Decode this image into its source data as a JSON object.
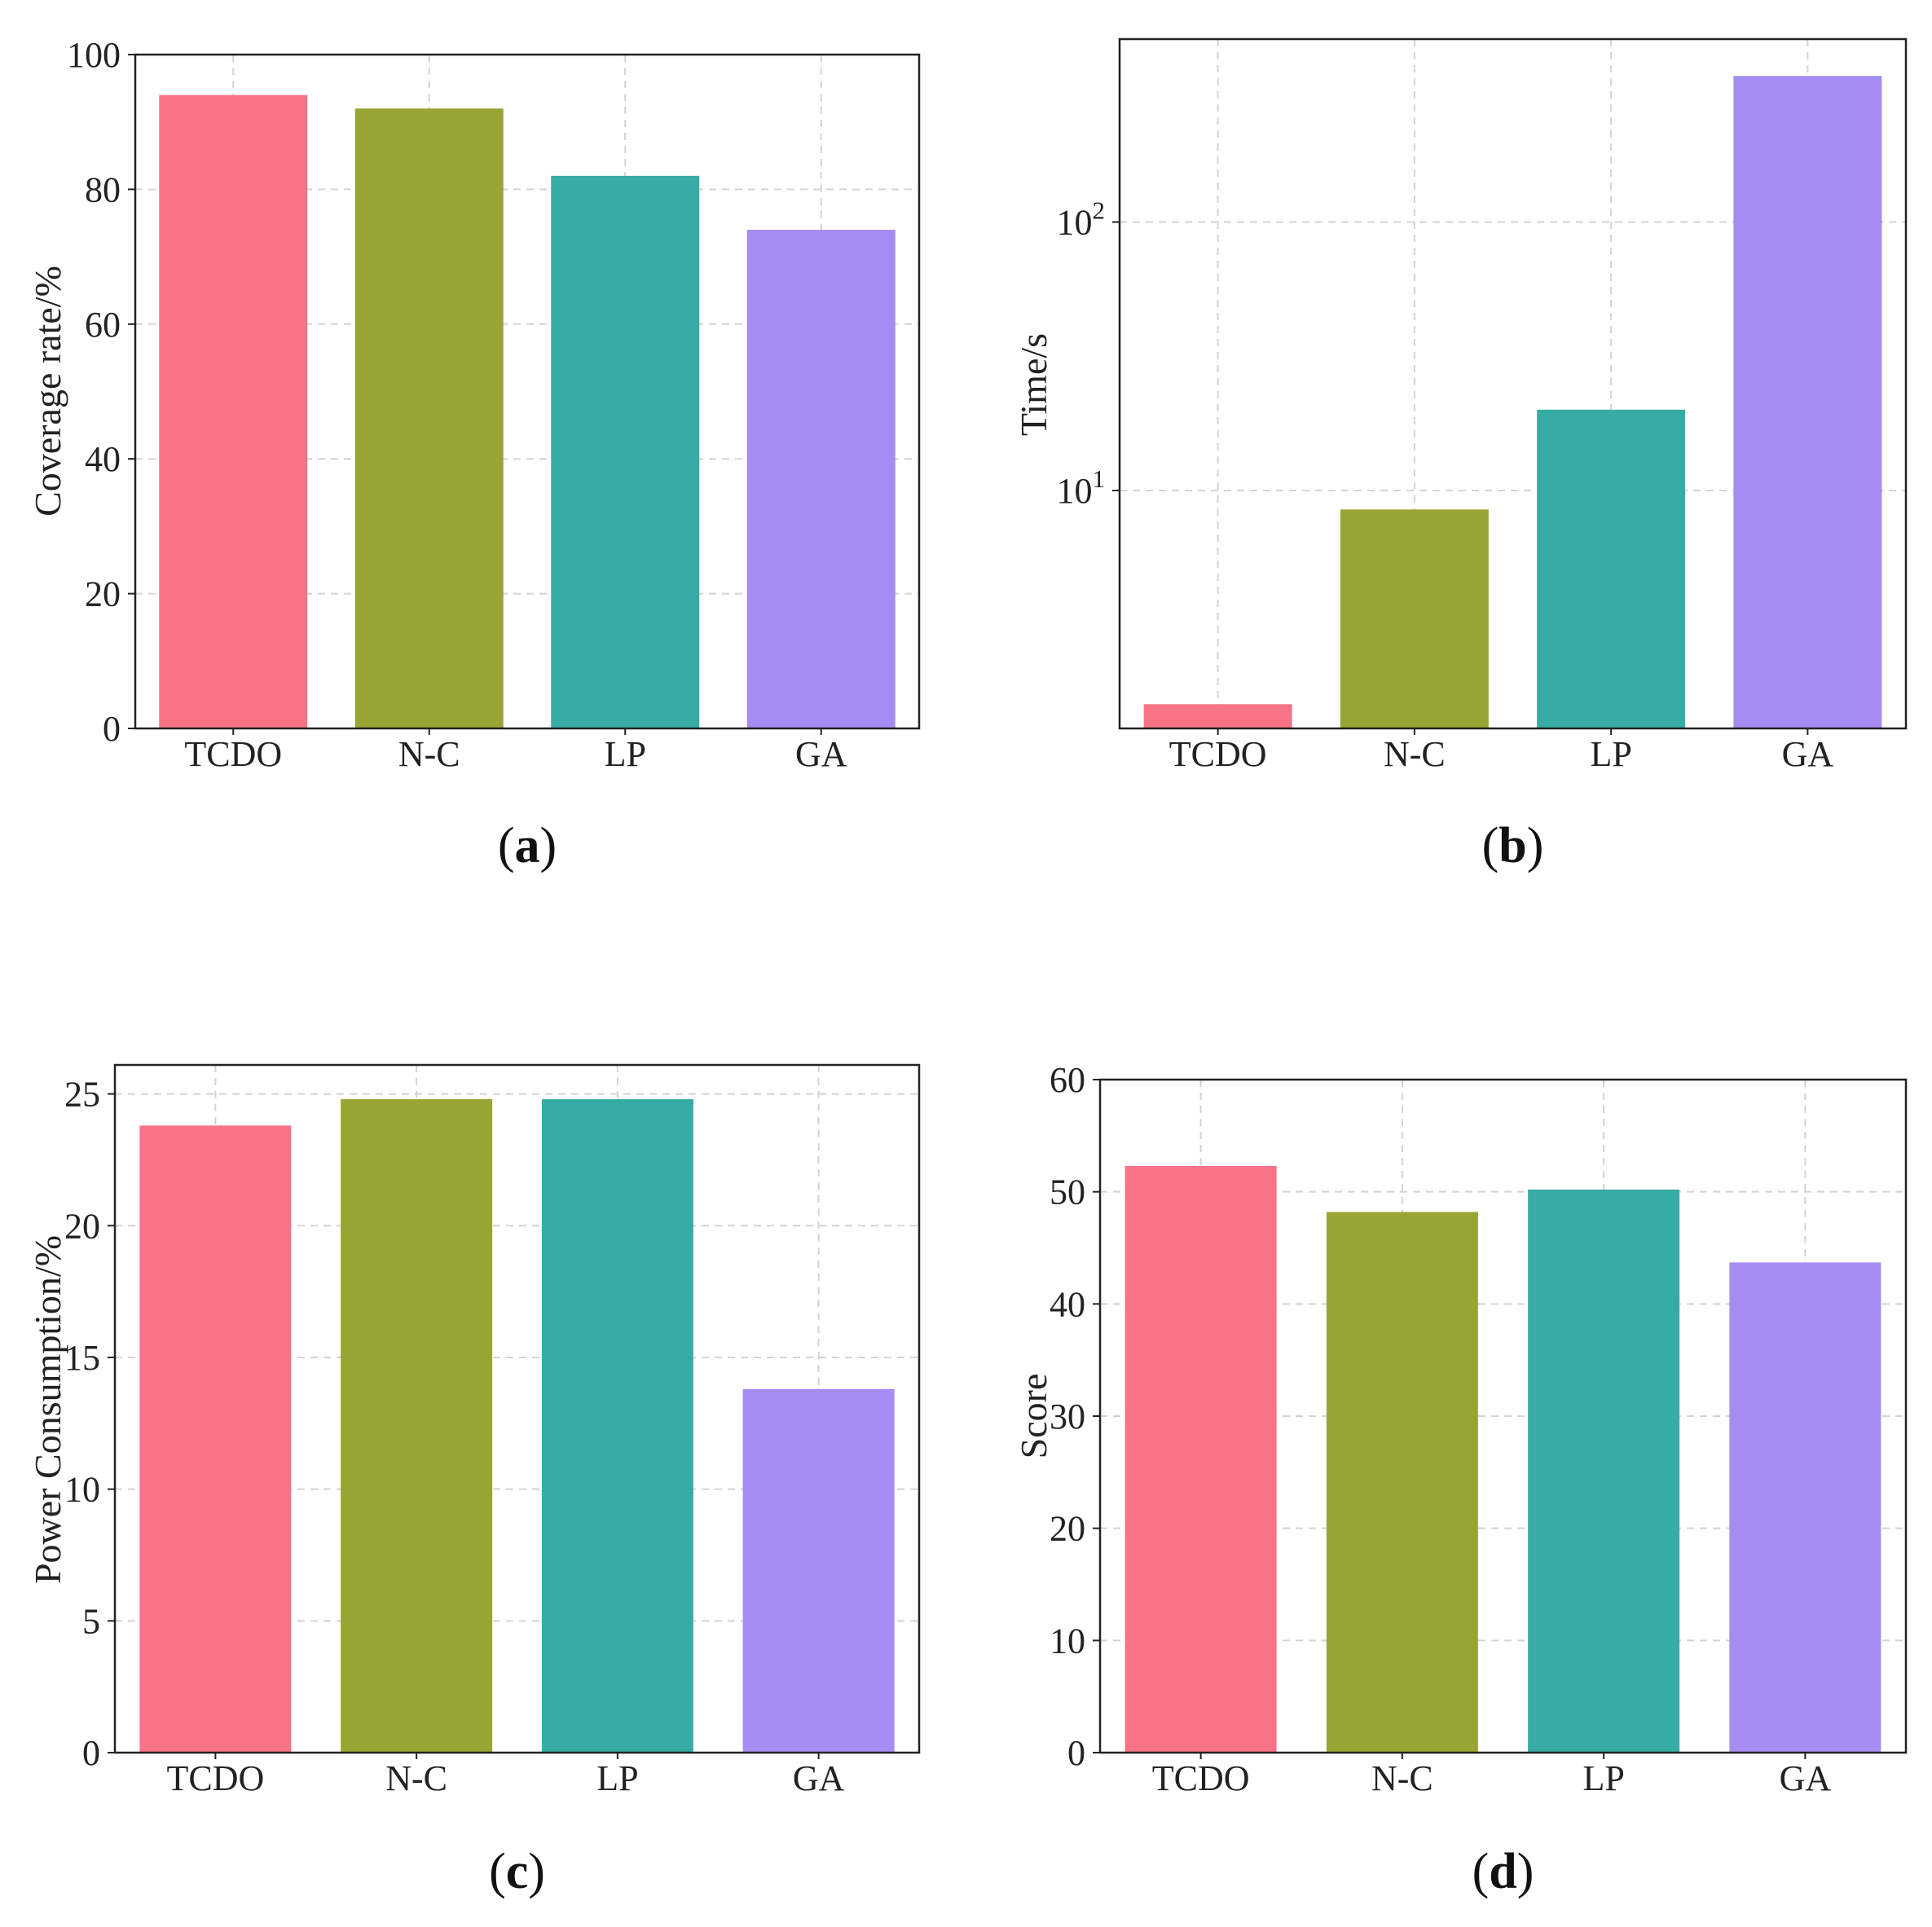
{
  "colors": [
    "#f67388",
    "#98a535",
    "#37aca4",
    "#a58cf2"
  ],
  "chart_data": [
    {
      "type": "bar",
      "panel": "a",
      "caption": {
        "open": "(",
        "letter": "a",
        "close": ")"
      },
      "categories": [
        "TCDO",
        "N-C",
        "LP",
        "GA"
      ],
      "values": [
        94,
        92,
        82,
        74
      ],
      "ylabel": "Coverage rate/%",
      "xlabel": "",
      "ylim": [
        0,
        100
      ],
      "yscale": "linear",
      "yticks": [
        0,
        20,
        40,
        60,
        80,
        100
      ],
      "ytick_labels": [
        "0",
        "20",
        "40",
        "60",
        "80",
        "100"
      ],
      "grid": true
    },
    {
      "type": "bar",
      "panel": "b",
      "caption": {
        "open": "(",
        "letter": "b",
        "close": ")"
      },
      "categories": [
        "TCDO",
        "N-C",
        "LP",
        "GA"
      ],
      "values": [
        1.6,
        8.5,
        20,
        350
      ],
      "ylabel": "Time/s",
      "xlabel": "",
      "ylim": [
        1.3,
        480
      ],
      "yscale": "log",
      "yticks": [
        10,
        100
      ],
      "ytick_labels": [
        {
          "base": "10",
          "exp": "1"
        },
        {
          "base": "10",
          "exp": "2"
        }
      ],
      "grid": true
    },
    {
      "type": "bar",
      "panel": "c",
      "caption": {
        "open": "(",
        "letter": "c",
        "close": ")"
      },
      "categories": [
        "TCDO",
        "N-C",
        "LP",
        "GA"
      ],
      "values": [
        23.8,
        24.8,
        24.8,
        13.8
      ],
      "ylabel": "Power Consumption/%",
      "xlabel": "",
      "ylim": [
        0,
        26.1
      ],
      "yscale": "linear",
      "yticks": [
        0,
        5,
        10,
        15,
        20,
        25
      ],
      "ytick_labels": [
        "0",
        "5",
        "10",
        "15",
        "20",
        "25"
      ],
      "grid": true
    },
    {
      "type": "bar",
      "panel": "d",
      "caption": {
        "open": "(",
        "letter": "d",
        "close": ")"
      },
      "categories": [
        "TCDO",
        "N-C",
        "LP",
        "GA"
      ],
      "values": [
        52.3,
        48.2,
        50.2,
        43.7
      ],
      "ylabel": "Score",
      "xlabel": "",
      "ylim": [
        0,
        60
      ],
      "yscale": "linear",
      "yticks": [
        0,
        10,
        20,
        30,
        40,
        50,
        60
      ],
      "ytick_labels": [
        "0",
        "10",
        "20",
        "30",
        "40",
        "50",
        "60"
      ],
      "grid": true
    }
  ]
}
